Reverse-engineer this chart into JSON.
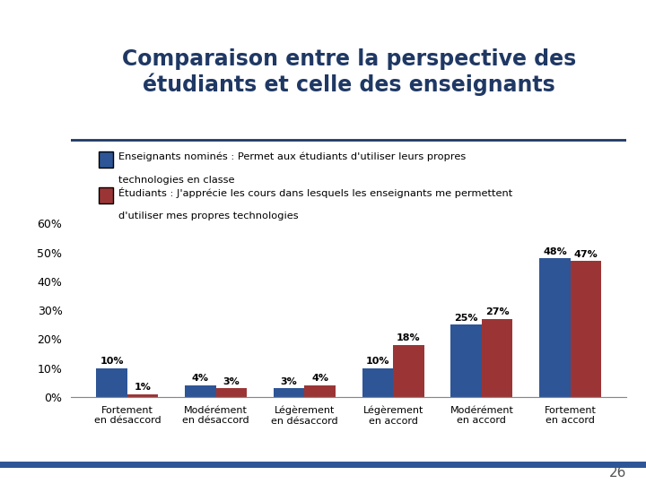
{
  "title_line1": "Comparaison entre la perspective des",
  "title_line2": "étudiants et celle des enseignants",
  "categories": [
    "Fortement\nen désaccord",
    "Modérément\nen désaccord",
    "Légèrement\nen désaccord",
    "Légèrement\nen accord",
    "Modérément\nen accord",
    "Fortement\nen accord"
  ],
  "enseignants": [
    10,
    4,
    3,
    10,
    25,
    48
  ],
  "etudiants": [
    1,
    3,
    4,
    18,
    27,
    47
  ],
  "enseignants_color": "#2E5596",
  "etudiants_color": "#9B3535",
  "legend_enseignants_line1": "Enseignants nominés : Permet aux étudiants d'utiliser leurs propres",
  "legend_enseignants_line2": "technologies en classe",
  "legend_etudiants_line1": "Étudiants : J'apprécie les cours dans lesquels les enseignants me permettent",
  "legend_etudiants_line2": "d'utiliser mes propres technologies",
  "ylim": [
    0,
    60
  ],
  "yticks": [
    0,
    10,
    20,
    30,
    40,
    50,
    60
  ],
  "ytick_labels": [
    "0%",
    "10%",
    "20%",
    "30%",
    "40%",
    "50%",
    "60%"
  ],
  "background_color": "#FFFFFF",
  "title_color": "#1F3864",
  "bar_width": 0.35,
  "page_number": "26",
  "separator_color": "#1F3864",
  "bottom_bar_color": "#2E5596"
}
